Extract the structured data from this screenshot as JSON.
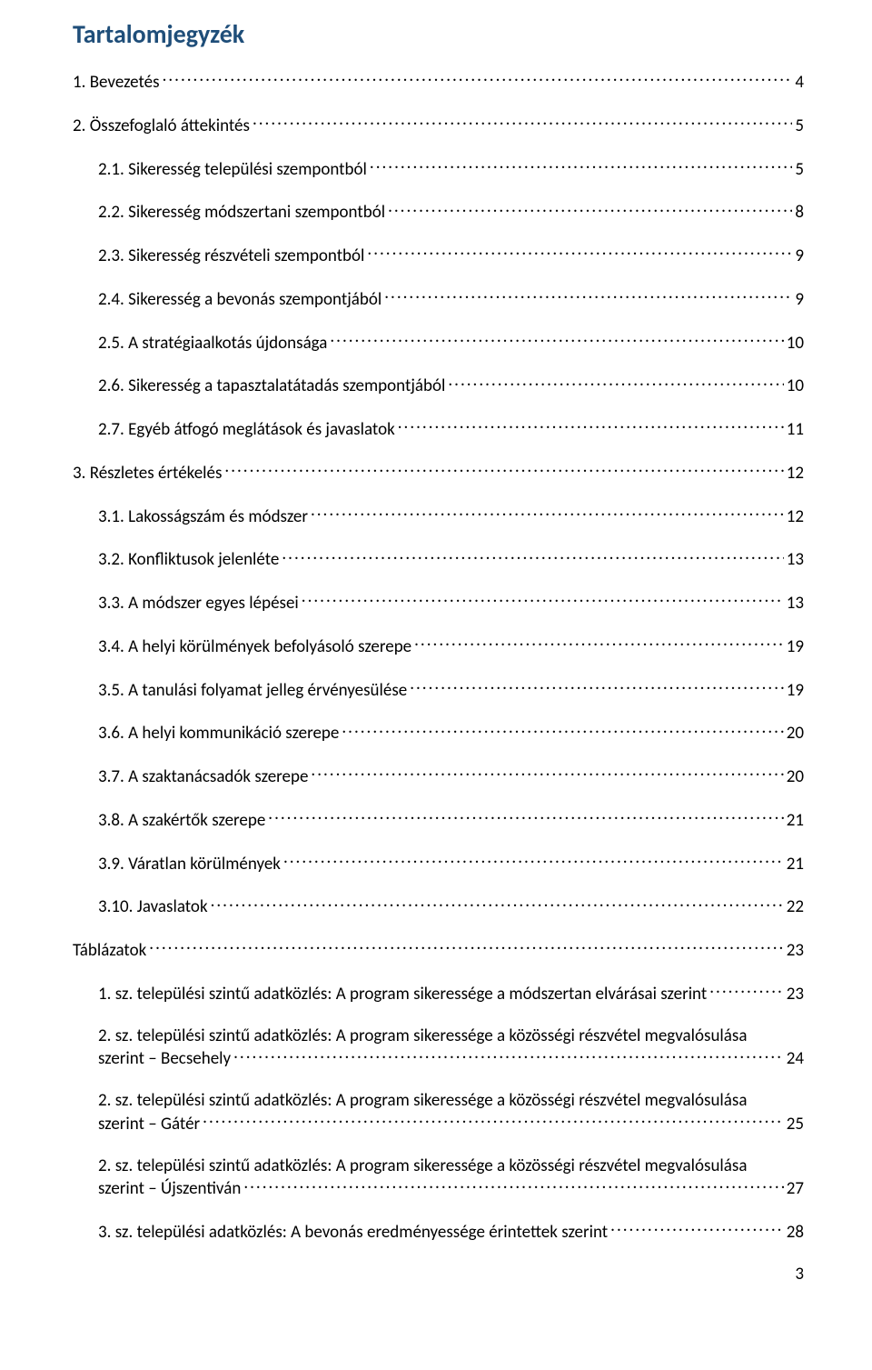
{
  "title": "Tartalomjegyzék",
  "entries": [
    {
      "level": 0,
      "label": "1. Bevezetés",
      "page": "4"
    },
    {
      "level": 0,
      "label": "2. Összefoglaló áttekintés",
      "page": "5"
    },
    {
      "level": 1,
      "label": "2.1. Sikeresség települési szempontból",
      "page": "5"
    },
    {
      "level": 1,
      "label": "2.2. Sikeresség módszertani szempontból",
      "page": "8"
    },
    {
      "level": 1,
      "label": "2.3. Sikeresség részvételi szempontból",
      "page": "9"
    },
    {
      "level": 1,
      "label": "2.4. Sikeresség a bevonás szempontjából",
      "page": "9"
    },
    {
      "level": 1,
      "label": "2.5. A stratégiaalkotás újdonsága",
      "page": "10"
    },
    {
      "level": 1,
      "label": "2.6. Sikeresség a tapasztalatátadás szempontjából",
      "page": "10"
    },
    {
      "level": 1,
      "label": "2.7. Egyéb átfogó meglátások és javaslatok",
      "page": "11"
    },
    {
      "level": 0,
      "label": "3. Részletes értékelés",
      "page": "12"
    },
    {
      "level": 1,
      "label": "3.1. Lakosságszám és módszer",
      "page": "12"
    },
    {
      "level": 1,
      "label": "3.2. Konfliktusok jelenléte",
      "page": "13"
    },
    {
      "level": 1,
      "label": "3.3. A módszer egyes lépései",
      "page": "13"
    },
    {
      "level": 1,
      "label": "3.4. A helyi körülmények befolyásoló szerepe",
      "page": "19"
    },
    {
      "level": 1,
      "label": "3.5. A tanulási folyamat jelleg érvényesülése",
      "page": "19"
    },
    {
      "level": 1,
      "label": "3.6. A helyi kommunikáció szerepe",
      "page": "20"
    },
    {
      "level": 1,
      "label": "3.7. A szaktanácsadók szerepe",
      "page": "20"
    },
    {
      "level": 1,
      "label": "3.8. A szakértők szerepe",
      "page": "21"
    },
    {
      "level": 1,
      "label": "3.9. Váratlan körülmények",
      "page": "21"
    },
    {
      "level": 1,
      "label": "3.10. Javaslatok",
      "page": "22"
    },
    {
      "level": 0,
      "label": "Táblázatok",
      "page": "23"
    },
    {
      "level": 1,
      "label": "1. sz. települési szintű adatközlés: A program sikeressége a módszertan elvárásai szerint",
      "page": "23"
    },
    {
      "level": 1,
      "multiline": true,
      "label_line1": "2. sz. települési szintű adatközlés: A program sikeressége a közösségi részvétel megvalósulása",
      "label_line2": "szerint – Becsehely",
      "page": "24"
    },
    {
      "level": 1,
      "multiline": true,
      "label_line1": "2. sz. települési szintű adatközlés: A program sikeressége a közösségi részvétel megvalósulása",
      "label_line2": "szerint – Gátér",
      "page": "25"
    },
    {
      "level": 1,
      "multiline": true,
      "label_line1": "2. sz. települési szintű adatközlés: A program sikeressége a közösségi részvétel megvalósulása",
      "label_line2": "szerint – Újszentiván",
      "page": "27"
    },
    {
      "level": 1,
      "label": "3. sz. települési adatközlés: A bevonás eredményessége érintettek szerint",
      "page": "28"
    }
  ],
  "footer_page": "3"
}
